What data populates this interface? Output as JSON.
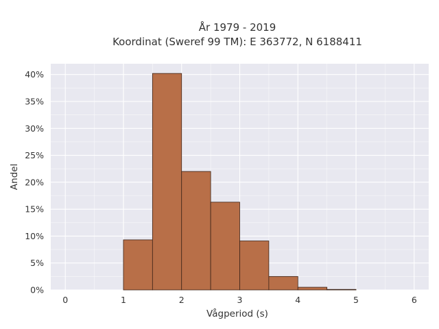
{
  "chart_data": {
    "type": "bar",
    "title_line1": "År 1979 - 2019",
    "title_line2": "Koordinat (Sweref 99 TM): E 363772, N 6188411",
    "xlabel": "Vågperiod (s)",
    "ylabel": "Andel",
    "xlim": [
      -0.25,
      6.25
    ],
    "ylim": [
      0,
      42
    ],
    "x_ticks": [
      0,
      1,
      2,
      3,
      4,
      5,
      6
    ],
    "x_tick_labels": [
      "0",
      "1",
      "2",
      "3",
      "4",
      "5",
      "6"
    ],
    "y_ticks": [
      0,
      5,
      10,
      15,
      20,
      25,
      30,
      35,
      40
    ],
    "y_tick_labels": [
      "0%",
      "5%",
      "10%",
      "15%",
      "20%",
      "25%",
      "30%",
      "35%",
      "40%"
    ],
    "bins": [
      {
        "x0": 1.0,
        "x1": 1.5,
        "value": 9.3
      },
      {
        "x0": 1.5,
        "x1": 2.0,
        "value": 40.2
      },
      {
        "x0": 2.0,
        "x1": 2.5,
        "value": 22.0
      },
      {
        "x0": 2.5,
        "x1": 3.0,
        "value": 16.3
      },
      {
        "x0": 3.0,
        "x1": 3.5,
        "value": 9.1
      },
      {
        "x0": 3.5,
        "x1": 4.0,
        "value": 2.5
      },
      {
        "x0": 4.0,
        "x1": 4.5,
        "value": 0.5
      },
      {
        "x0": 4.5,
        "x1": 5.0,
        "value": 0.1
      }
    ],
    "grid": true,
    "colors": {
      "bar_fill": "#b86f48",
      "bar_stroke": "#3d2418",
      "plot_bg": "#e8e8f0",
      "grid": "#ffffff"
    }
  }
}
